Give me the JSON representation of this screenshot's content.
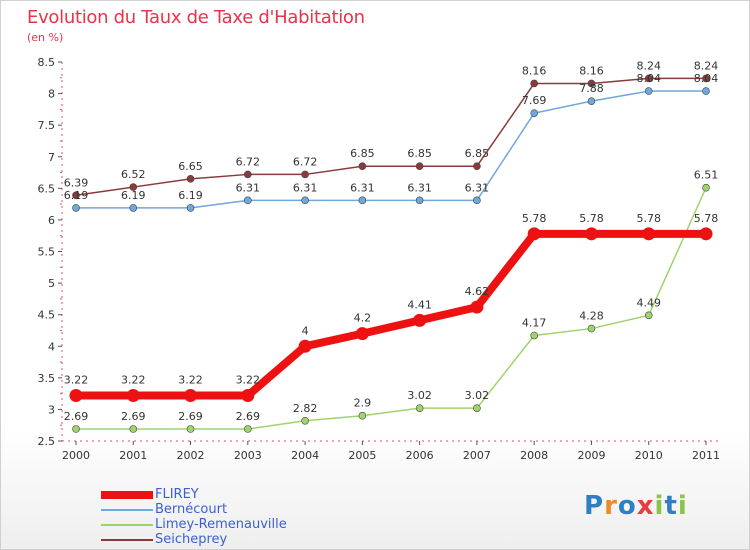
{
  "title": "Evolution du Taux de Taxe d'Habitation",
  "subtitle": "(en %)",
  "logo_text": "Proxiti",
  "chart_data": {
    "type": "line",
    "title": "Evolution du Taux de Taxe d'Habitation",
    "subtitle": "(en %)",
    "xlabel": "",
    "ylabel": "",
    "x": [
      "2000",
      "2001",
      "2002",
      "2003",
      "2004",
      "2005",
      "2006",
      "2007",
      "2008",
      "2009",
      "2010",
      "2011"
    ],
    "ylim": [
      2.5,
      8.5
    ],
    "yticks": [
      "2.5",
      "3",
      "3.5",
      "4",
      "4.5",
      "5",
      "5.5",
      "6",
      "6.5",
      "7",
      "7.5",
      "8",
      "8.5"
    ],
    "grid": false,
    "legend_position": "bottom-left",
    "series": [
      {
        "name": "FLIREY",
        "color": "#ee1111",
        "values": [
          3.22,
          3.22,
          3.22,
          3.22,
          4,
          4.2,
          4.41,
          4.62,
          5.78,
          5.78,
          5.78,
          5.78
        ],
        "labels": [
          "3.22",
          "3.22",
          "3.22",
          "3.22",
          "4",
          "4.2",
          "4.41",
          "4.62",
          "5.78",
          "5.78",
          "5.78",
          "5.78"
        ]
      },
      {
        "name": "Bernécourt",
        "color": "#6fa8dc",
        "values": [
          6.19,
          6.19,
          6.19,
          6.31,
          6.31,
          6.31,
          6.31,
          6.31,
          7.69,
          7.88,
          8.04,
          8.04
        ],
        "labels": [
          "6.19",
          "6.19",
          "6.19",
          "6.31",
          "6.31",
          "6.31",
          "6.31",
          "6.31",
          "7.69",
          "7.88",
          "8.04",
          "8.04"
        ]
      },
      {
        "name": "Limey-Remenauville",
        "color": "#9ed46a",
        "values": [
          2.69,
          2.69,
          2.69,
          2.69,
          2.82,
          2.9,
          3.02,
          3.02,
          4.17,
          4.28,
          4.49,
          6.51
        ],
        "labels": [
          "2.69",
          "2.69",
          "2.69",
          "2.69",
          "2.82",
          "2.9",
          "3.02",
          "3.02",
          "4.17",
          "4.28",
          "4.49",
          "6.51"
        ]
      },
      {
        "name": "Seicheprey",
        "color": "#8a3a3a",
        "values": [
          6.39,
          6.52,
          6.65,
          6.72,
          6.72,
          6.85,
          6.85,
          6.85,
          8.16,
          8.16,
          8.24,
          8.24
        ],
        "labels": [
          "6.39",
          "6.52",
          "6.65",
          "6.72",
          "6.72",
          "6.85",
          "6.85",
          "6.85",
          "8.16",
          "8.16",
          "8.24",
          "8.24"
        ]
      }
    ]
  }
}
